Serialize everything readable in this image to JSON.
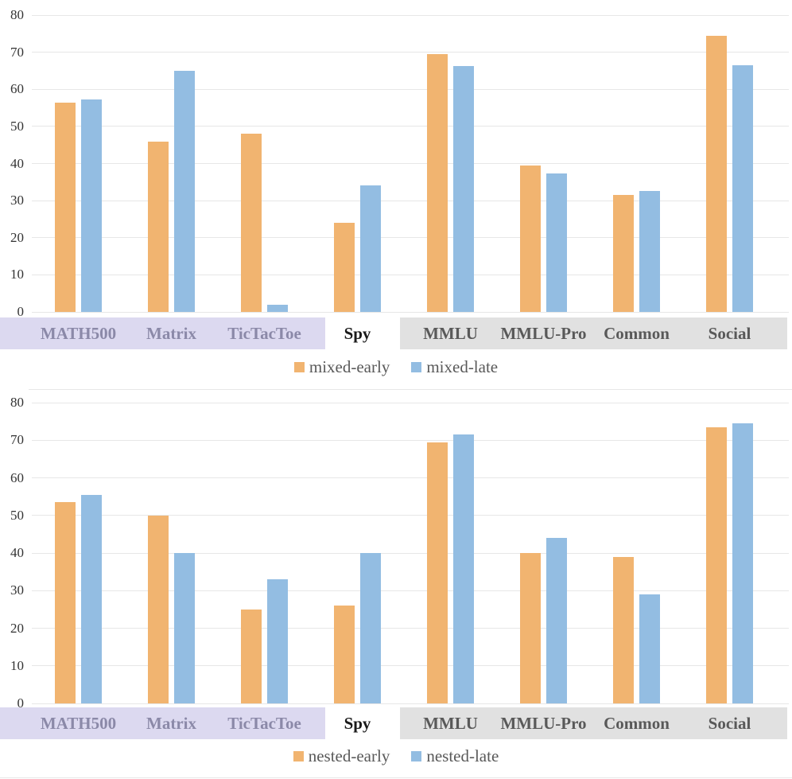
{
  "styles": {
    "orange": "#F1B470",
    "blue": "#93BDE2",
    "lavender_bg": "#DCD9F0",
    "lavender_text": "#8B89A8",
    "gray_bg": "#E1E1E1",
    "gray_text": "#595959",
    "none_text": "#1A1A1A",
    "grid_color": "#E7E7E7",
    "axis_text": "#333333",
    "legend_text": "#595959"
  },
  "chart_data": [
    {
      "type": "bar",
      "title": "",
      "xlabel": "",
      "ylabel": "",
      "ylim": [
        0,
        80
      ],
      "ytick_step": 10,
      "grid": "horizontal",
      "legend_position": "bottom",
      "categories": [
        "MATH500",
        "Matrix",
        "TicTacToe",
        "Spy",
        "MMLU",
        "MMLU-Pro",
        "Common",
        "Social"
      ],
      "category_highlights": [
        "lavender",
        "lavender",
        "lavender",
        "none",
        "gray",
        "gray",
        "gray",
        "gray"
      ],
      "series": [
        {
          "name": "mixed-early",
          "color": "#F1B470",
          "values": [
            56.5,
            46,
            48,
            24,
            69.5,
            39.5,
            31.5,
            74.5
          ]
        },
        {
          "name": "mixed-late",
          "color": "#93BDE2",
          "values": [
            57.2,
            65,
            2,
            34,
            66.2,
            37.3,
            32.6,
            66.5
          ]
        }
      ]
    },
    {
      "type": "bar",
      "title": "",
      "xlabel": "",
      "ylabel": "",
      "ylim": [
        0,
        80
      ],
      "ytick_step": 10,
      "grid": "horizontal",
      "legend_position": "bottom",
      "categories": [
        "MATH500",
        "Matrix",
        "TicTacToe",
        "Spy",
        "MMLU",
        "MMLU-Pro",
        "Common",
        "Social"
      ],
      "category_highlights": [
        "lavender",
        "lavender",
        "lavender",
        "none",
        "gray",
        "gray",
        "gray",
        "gray"
      ],
      "series": [
        {
          "name": "nested-early",
          "color": "#F1B470",
          "values": [
            53.5,
            50,
            25,
            26,
            69.5,
            40,
            39,
            73.5
          ]
        },
        {
          "name": "nested-late",
          "color": "#93BDE2",
          "values": [
            55.5,
            40,
            33,
            40,
            71.5,
            44,
            29,
            74.5
          ]
        }
      ]
    }
  ]
}
